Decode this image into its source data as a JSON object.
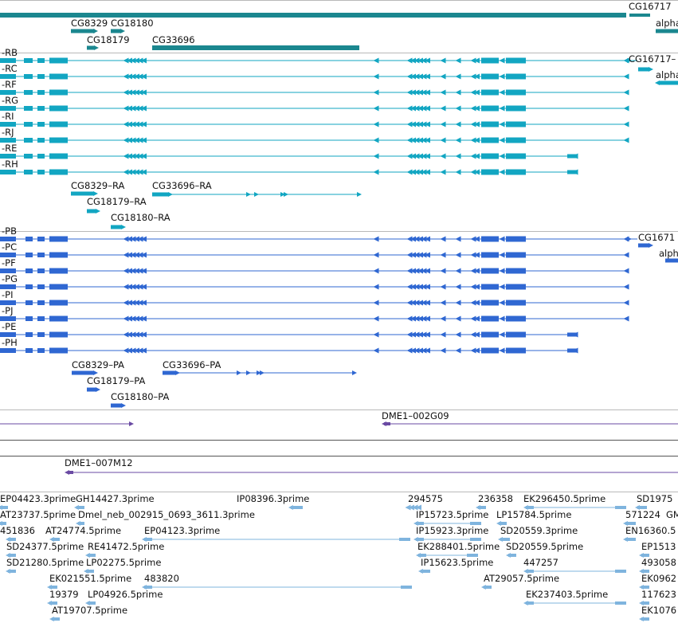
{
  "colors": {
    "gene": "#1b878f",
    "transcript": "#12a6c2",
    "protein": "#2f67d2",
    "clone": "#6a4aa3",
    "est": "#7fb4de",
    "separator": "#b9b9b9",
    "divider": "#555555"
  },
  "tracks": {
    "genes": [
      {
        "name": "g-cg16717",
        "label": "CG16717"
      },
      {
        "name": "g-cg8329",
        "label": "CG8329"
      },
      {
        "name": "g-cg18180",
        "label": "CG18180"
      },
      {
        "name": "g-cg18179",
        "label": "CG18179"
      },
      {
        "name": "g-cg33696",
        "label": "CG33696"
      },
      {
        "name": "g-alpha",
        "label": "alpha"
      }
    ],
    "transcripts": {
      "rows": [
        {
          "name": "tr-rb",
          "label": "-RB"
        },
        {
          "name": "tr-rc",
          "label": "-RC"
        },
        {
          "name": "tr-rf",
          "label": "-RF"
        },
        {
          "name": "tr-rg",
          "label": "-RG"
        },
        {
          "name": "tr-ri",
          "label": "-RI"
        },
        {
          "name": "tr-rj",
          "label": "-RJ"
        },
        {
          "name": "tr-re",
          "label": "-RE"
        },
        {
          "name": "tr-rh",
          "label": "-RH"
        }
      ],
      "extra": [
        {
          "name": "tr-cg16717",
          "label": "CG16717–"
        },
        {
          "name": "tr-alpha",
          "label": "alpha"
        },
        {
          "name": "tr-cg8329-ra",
          "label": "CG8329–RA"
        },
        {
          "name": "tr-cg33696-ra",
          "label": "CG33696–RA"
        },
        {
          "name": "tr-cg18179-ra",
          "label": "CG18179–RA"
        },
        {
          "name": "tr-cg18180-ra",
          "label": "CG18180–RA"
        }
      ]
    },
    "proteins": {
      "rows": [
        {
          "name": "pr-pb",
          "label": "-PB"
        },
        {
          "name": "pr-pc",
          "label": "-PC"
        },
        {
          "name": "pr-pf",
          "label": "-PF"
        },
        {
          "name": "pr-pg",
          "label": "-PG"
        },
        {
          "name": "pr-pi",
          "label": "-PI"
        },
        {
          "name": "pr-pj",
          "label": "-PJ"
        },
        {
          "name": "pr-pe",
          "label": "-PE"
        },
        {
          "name": "pr-ph",
          "label": "-PH"
        }
      ],
      "extra": [
        {
          "name": "pr-cg1671",
          "label": "CG1671"
        },
        {
          "name": "pr-alph",
          "label": "alph"
        },
        {
          "name": "pr-cg8329-pa",
          "label": "CG8329–PA"
        },
        {
          "name": "pr-cg33696-pa",
          "label": "CG33696–PA"
        },
        {
          "name": "pr-cg18179-pa",
          "label": "CG18179–PA"
        },
        {
          "name": "pr-cg18180-pa",
          "label": "CG18180–PA"
        }
      ]
    },
    "clones": [
      {
        "name": "clone-dme1-002g09",
        "label": "DME1–002G09"
      },
      {
        "name": "clone-dme1-007m12",
        "label": "DME1–007M12"
      }
    ],
    "ests": [
      {
        "name": "est-ep04423",
        "label": "EP04423.3prime"
      },
      {
        "name": "est-gh14427",
        "label": "GH14427.3prime"
      },
      {
        "name": "est-ip08396",
        "label": "IP08396.3prime"
      },
      {
        "name": "est-294575",
        "label": "294575"
      },
      {
        "name": "est-236358",
        "label": "236358"
      },
      {
        "name": "est-ek296450",
        "label": "EK296450.5prime"
      },
      {
        "name": "est-sd1975",
        "label": "SD1975"
      },
      {
        "name": "est-at23737",
        "label": "AT23737.5prime"
      },
      {
        "name": "est-dmel-neb",
        "label": "Dmel_neb_002915_0693_3611.3prime"
      },
      {
        "name": "est-ip15723",
        "label": "IP15723.5prime"
      },
      {
        "name": "est-lp15784",
        "label": "LP15784.5prime"
      },
      {
        "name": "est-571224",
        "label": "571224"
      },
      {
        "name": "est-gm",
        "label": "GM"
      },
      {
        "name": "est-451836",
        "label": "451836"
      },
      {
        "name": "est-at24774",
        "label": "AT24774.5prime"
      },
      {
        "name": "est-ep04123",
        "label": "EP04123.3prime"
      },
      {
        "name": "est-ip15923",
        "label": "IP15923.3prime"
      },
      {
        "name": "est-sd20559-3",
        "label": "SD20559.3prime"
      },
      {
        "name": "est-en16360",
        "label": "EN16360.5"
      },
      {
        "name": "est-sd24377",
        "label": "SD24377.5prime"
      },
      {
        "name": "est-re41472",
        "label": "RE41472.5prime"
      },
      {
        "name": "est-ek288401",
        "label": "EK288401.5prime"
      },
      {
        "name": "est-sd20559-5",
        "label": "SD20559.5prime"
      },
      {
        "name": "est-ep1513",
        "label": "EP1513"
      },
      {
        "name": "est-sd21280",
        "label": "SD21280.5prime"
      },
      {
        "name": "est-lp02275",
        "label": "LP02275.5prime"
      },
      {
        "name": "est-ip15623",
        "label": "IP15623.5prime"
      },
      {
        "name": "est-447257",
        "label": "447257"
      },
      {
        "name": "est-493058",
        "label": "493058"
      },
      {
        "name": "est-ek021551",
        "label": "EK021551.5prime"
      },
      {
        "name": "est-483820",
        "label": "483820"
      },
      {
        "name": "est-at29057",
        "label": "AT29057.5prime"
      },
      {
        "name": "est-ek0962",
        "label": "EK0962"
      },
      {
        "name": "est-19379",
        "label": "19379"
      },
      {
        "name": "est-lp04926",
        "label": "LP04926.5prime"
      },
      {
        "name": "est-ek237403",
        "label": "EK237403.5prime"
      },
      {
        "name": "est-117623",
        "label": "117623"
      },
      {
        "name": "est-at19707",
        "label": "AT19707.5prime"
      },
      {
        "name": "est-ek1076",
        "label": "EK1076"
      }
    ]
  }
}
